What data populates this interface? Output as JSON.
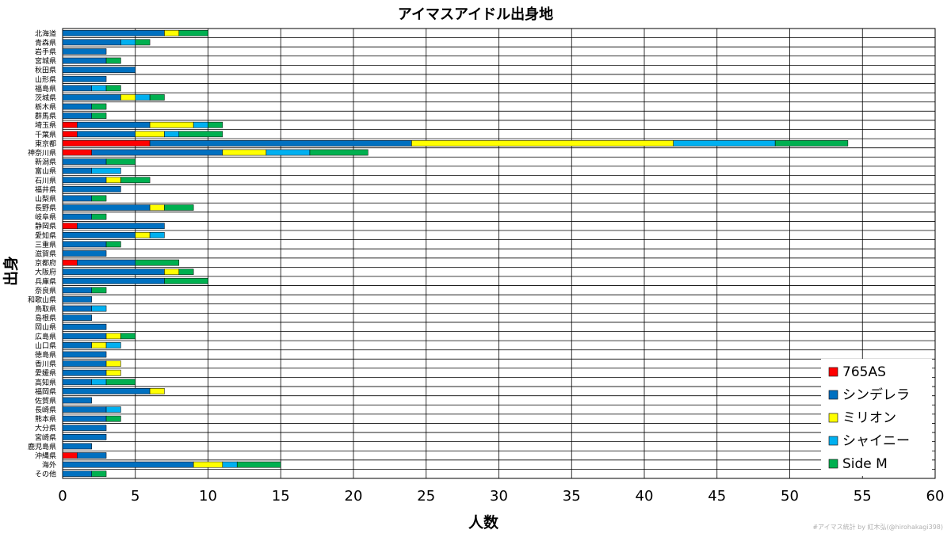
{
  "watermark": "#アイマス統計 by 紅木弘(@hirohakagi398)",
  "chart_data": {
    "type": "bar",
    "orientation": "horizontal",
    "stacked": true,
    "title": "アイマスアイドル出身地",
    "xlabel": "人数",
    "ylabel": "出身",
    "xlim": [
      0,
      60
    ],
    "xticks": [
      0,
      5,
      10,
      15,
      20,
      25,
      30,
      35,
      40,
      45,
      50,
      55,
      60
    ],
    "grid": true,
    "legend_position": "bottom-right",
    "categories": [
      "北海道",
      "青森県",
      "岩手県",
      "宮城県",
      "秋田県",
      "山形県",
      "福島県",
      "茨城県",
      "栃木県",
      "群馬県",
      "埼玉県",
      "千葉県",
      "東京都",
      "神奈川県",
      "新潟県",
      "富山県",
      "石川県",
      "福井県",
      "山梨県",
      "長野県",
      "岐阜県",
      "静岡県",
      "愛知県",
      "三重県",
      "滋賀県",
      "京都府",
      "大阪府",
      "兵庫県",
      "奈良県",
      "和歌山県",
      "鳥取県",
      "島根県",
      "岡山県",
      "広島県",
      "山口県",
      "徳島県",
      "香川県",
      "愛媛県",
      "高知県",
      "福岡県",
      "佐賀県",
      "長崎県",
      "熊本県",
      "大分県",
      "宮崎県",
      "鹿児島県",
      "沖縄県",
      "海外",
      "その他"
    ],
    "series": [
      {
        "name": "765AS",
        "color": "#ff0000",
        "values": [
          0,
          0,
          0,
          0,
          0,
          0,
          0,
          0,
          0,
          0,
          1,
          1,
          6,
          2,
          0,
          0,
          0,
          0,
          0,
          0,
          0,
          1,
          0,
          0,
          0,
          1,
          0,
          0,
          0,
          0,
          0,
          0,
          0,
          0,
          0,
          0,
          0,
          0,
          0,
          0,
          0,
          0,
          0,
          0,
          0,
          0,
          1,
          0,
          0
        ]
      },
      {
        "name": "シンデレラ",
        "color": "#0070c0",
        "values": [
          7,
          4,
          3,
          3,
          5,
          3,
          2,
          4,
          2,
          2,
          5,
          4,
          18,
          9,
          3,
          2,
          3,
          4,
          2,
          6,
          2,
          6,
          5,
          3,
          3,
          4,
          7,
          7,
          2,
          2,
          2,
          2,
          3,
          3,
          2,
          3,
          3,
          3,
          2,
          6,
          2,
          3,
          3,
          3,
          3,
          2,
          2,
          9,
          2
        ]
      },
      {
        "name": "ミリオン",
        "color": "#ffff00",
        "values": [
          1,
          0,
          0,
          0,
          0,
          0,
          0,
          1,
          0,
          0,
          3,
          2,
          18,
          3,
          0,
          0,
          1,
          0,
          0,
          1,
          0,
          0,
          1,
          0,
          0,
          0,
          1,
          0,
          0,
          0,
          0,
          0,
          0,
          1,
          1,
          0,
          1,
          1,
          0,
          1,
          0,
          0,
          0,
          0,
          0,
          0,
          0,
          2,
          0
        ]
      },
      {
        "name": "シャイニー",
        "color": "#00b0f0",
        "values": [
          0,
          1,
          0,
          0,
          0,
          0,
          1,
          1,
          0,
          0,
          1,
          1,
          7,
          3,
          0,
          2,
          0,
          0,
          0,
          0,
          0,
          0,
          1,
          0,
          0,
          0,
          0,
          0,
          0,
          0,
          1,
          0,
          0,
          0,
          1,
          0,
          0,
          0,
          1,
          0,
          0,
          1,
          0,
          0,
          0,
          0,
          0,
          1,
          0
        ]
      },
      {
        "name": "Side M",
        "color": "#00b050",
        "values": [
          2,
          1,
          0,
          1,
          0,
          0,
          1,
          1,
          1,
          1,
          1,
          3,
          5,
          4,
          2,
          0,
          2,
          0,
          1,
          2,
          1,
          0,
          0,
          1,
          0,
          3,
          1,
          3,
          1,
          0,
          0,
          0,
          0,
          1,
          0,
          0,
          0,
          0,
          2,
          0,
          0,
          0,
          1,
          0,
          0,
          0,
          0,
          3,
          1
        ]
      }
    ]
  }
}
